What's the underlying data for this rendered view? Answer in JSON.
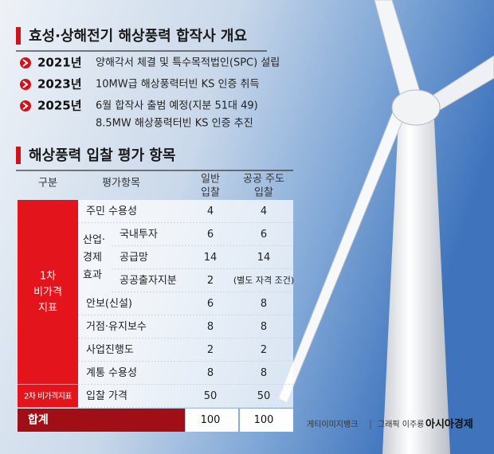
{
  "overview": {
    "title": "효성·상해전기 해상풍력 합작사 개요",
    "items": [
      {
        "year": "2021년",
        "lines": [
          "양해각서 체결 및 특수목적법인(SPC) 설립"
        ]
      },
      {
        "year": "2023년",
        "lines": [
          "10MW급 해상풍력터빈 KS 인증 취득"
        ]
      },
      {
        "year": "2025년",
        "lines": [
          "6월 합작사 출범 예정(지분 51대 49)",
          "8.5MW 해상풍력터빈 KS 인증 추진"
        ]
      }
    ]
  },
  "evaluation": {
    "title": "해상풍력 입찰 평가 항목",
    "header": {
      "category": "구분",
      "item": "평가항목",
      "general": [
        "일반",
        "입찰"
      ],
      "public": [
        "공공 주도",
        "입찰"
      ]
    },
    "groups": [
      {
        "label": [
          "1차",
          "비가격",
          "지표"
        ],
        "rows": [
          {
            "item": "주민 수용성",
            "general": 4,
            "public": 4
          },
          {
            "label": [
              "산업·",
              "경제",
              "효과"
            ],
            "rows": [
              {
                "item": "국내투자",
                "general": 6,
                "public": 6
              },
              {
                "item": "공급망",
                "general": 14,
                "public": 14
              },
              {
                "item": "공공출자지분",
                "general": 2,
                "public": "(별도 자격 조건)"
              }
            ]
          },
          {
            "item": "안보(신설)",
            "general": 6,
            "public": 8
          },
          {
            "item": "거점·유지보수",
            "general": 8,
            "public": 8
          },
          {
            "item": "사업진행도",
            "general": 2,
            "public": 2
          },
          {
            "item": "계통 수용성",
            "general": 8,
            "public": 8
          }
        ]
      },
      {
        "label": [
          "2차 비가격지표"
        ],
        "rows": [
          {
            "item": "입찰 가격",
            "general": 50,
            "public": 50
          }
        ]
      }
    ],
    "total": {
      "label": "합계",
      "general": 100,
      "public": 100
    }
  },
  "credits": {
    "source": "게티이미지뱅크",
    "graphic": "그래픽 이주룡",
    "publisher": "아시아경제"
  }
}
